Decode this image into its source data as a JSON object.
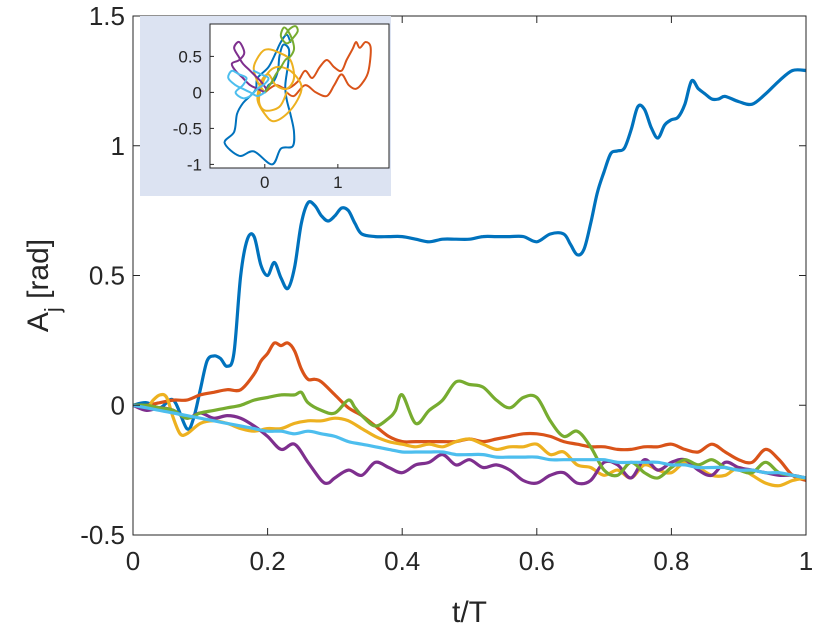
{
  "chart_data": [
    {
      "type": "line",
      "xlabel": "t/T",
      "ylabel": "A",
      "ylabel_subscript": "j",
      "ylabel_unit": " [rad]",
      "xlim": [
        0,
        1
      ],
      "ylim": [
        -0.5,
        1.5
      ],
      "xticks": [
        0,
        0.2,
        0.4,
        0.6,
        0.8,
        1
      ],
      "xtick_labels": [
        "0",
        "0.2",
        "0.4",
        "0.6",
        "0.8",
        "1"
      ],
      "yticks": [
        -0.5,
        0,
        0.5,
        1,
        1.5
      ],
      "ytick_labels": [
        "-0.5",
        "0",
        "0.5",
        "1",
        "1.5"
      ],
      "grid": false,
      "series": [
        {
          "color": "#0072BD",
          "x": [
            0,
            0.02,
            0.04,
            0.06,
            0.08,
            0.09,
            0.1,
            0.11,
            0.12,
            0.13,
            0.14,
            0.15,
            0.16,
            0.17,
            0.18,
            0.19,
            0.2,
            0.21,
            0.22,
            0.23,
            0.24,
            0.25,
            0.26,
            0.27,
            0.28,
            0.29,
            0.3,
            0.31,
            0.32,
            0.33,
            0.34,
            0.36,
            0.38,
            0.4,
            0.42,
            0.44,
            0.46,
            0.48,
            0.5,
            0.52,
            0.54,
            0.56,
            0.58,
            0.6,
            0.62,
            0.64,
            0.65,
            0.66,
            0.67,
            0.68,
            0.69,
            0.7,
            0.71,
            0.72,
            0.73,
            0.74,
            0.75,
            0.76,
            0.77,
            0.78,
            0.79,
            0.8,
            0.81,
            0.82,
            0.83,
            0.84,
            0.85,
            0.86,
            0.87,
            0.88,
            0.9,
            0.92,
            0.94,
            0.96,
            0.98,
            1.0
          ],
          "y": [
            0,
            0.01,
            -0.01,
            0.02,
            -0.09,
            -0.05,
            0.06,
            0.17,
            0.19,
            0.18,
            0.15,
            0.2,
            0.5,
            0.64,
            0.65,
            0.54,
            0.5,
            0.55,
            0.49,
            0.45,
            0.53,
            0.7,
            0.78,
            0.77,
            0.73,
            0.71,
            0.73,
            0.76,
            0.75,
            0.7,
            0.66,
            0.65,
            0.65,
            0.65,
            0.64,
            0.63,
            0.64,
            0.64,
            0.64,
            0.65,
            0.65,
            0.65,
            0.65,
            0.63,
            0.66,
            0.66,
            0.62,
            0.58,
            0.6,
            0.7,
            0.82,
            0.9,
            0.97,
            0.98,
            0.99,
            1.06,
            1.15,
            1.14,
            1.07,
            1.03,
            1.08,
            1.1,
            1.11,
            1.16,
            1.25,
            1.22,
            1.2,
            1.18,
            1.18,
            1.19,
            1.17,
            1.16,
            1.2,
            1.25,
            1.29,
            1.29
          ]
        },
        {
          "color": "#D95319",
          "x": [
            0,
            0.02,
            0.04,
            0.06,
            0.08,
            0.1,
            0.12,
            0.14,
            0.16,
            0.18,
            0.19,
            0.2,
            0.21,
            0.22,
            0.23,
            0.24,
            0.25,
            0.26,
            0.27,
            0.28,
            0.3,
            0.32,
            0.34,
            0.36,
            0.38,
            0.4,
            0.42,
            0.44,
            0.46,
            0.48,
            0.5,
            0.52,
            0.54,
            0.56,
            0.58,
            0.6,
            0.62,
            0.64,
            0.66,
            0.68,
            0.7,
            0.72,
            0.74,
            0.76,
            0.78,
            0.8,
            0.82,
            0.84,
            0.86,
            0.88,
            0.9,
            0.92,
            0.94,
            0.96,
            0.98,
            1.0
          ],
          "y": [
            0,
            0,
            0.01,
            0.02,
            0.02,
            0.04,
            0.05,
            0.06,
            0.06,
            0.12,
            0.17,
            0.2,
            0.24,
            0.23,
            0.24,
            0.21,
            0.14,
            0.1,
            0.1,
            0.09,
            0.04,
            -0.01,
            -0.04,
            -0.08,
            -0.12,
            -0.14,
            -0.14,
            -0.14,
            -0.14,
            -0.14,
            -0.13,
            -0.14,
            -0.13,
            -0.12,
            -0.11,
            -0.11,
            -0.12,
            -0.14,
            -0.15,
            -0.16,
            -0.16,
            -0.17,
            -0.17,
            -0.16,
            -0.16,
            -0.15,
            -0.17,
            -0.18,
            -0.15,
            -0.18,
            -0.21,
            -0.22,
            -0.17,
            -0.21,
            -0.27,
            -0.29
          ]
        },
        {
          "color": "#EDB120",
          "x": [
            0,
            0.02,
            0.03,
            0.04,
            0.05,
            0.06,
            0.07,
            0.08,
            0.1,
            0.12,
            0.14,
            0.16,
            0.18,
            0.2,
            0.22,
            0.24,
            0.26,
            0.28,
            0.3,
            0.32,
            0.34,
            0.36,
            0.38,
            0.4,
            0.42,
            0.44,
            0.46,
            0.48,
            0.5,
            0.52,
            0.54,
            0.56,
            0.58,
            0.6,
            0.62,
            0.64,
            0.66,
            0.68,
            0.7,
            0.72,
            0.74,
            0.76,
            0.78,
            0.8,
            0.82,
            0.84,
            0.86,
            0.88,
            0.9,
            0.92,
            0.94,
            0.96,
            0.98,
            1.0
          ],
          "y": [
            0,
            -0.01,
            0.02,
            0.04,
            0.03,
            -0.05,
            -0.11,
            -0.11,
            -0.07,
            -0.06,
            -0.07,
            -0.09,
            -0.1,
            -0.09,
            -0.09,
            -0.07,
            -0.06,
            -0.06,
            -0.05,
            -0.06,
            -0.09,
            -0.12,
            -0.14,
            -0.15,
            -0.16,
            -0.15,
            -0.16,
            -0.14,
            -0.13,
            -0.15,
            -0.17,
            -0.16,
            -0.16,
            -0.15,
            -0.19,
            -0.18,
            -0.23,
            -0.24,
            -0.27,
            -0.25,
            -0.28,
            -0.23,
            -0.25,
            -0.26,
            -0.22,
            -0.24,
            -0.27,
            -0.27,
            -0.24,
            -0.27,
            -0.3,
            -0.31,
            -0.29,
            -0.28
          ]
        },
        {
          "color": "#7E2F8E",
          "x": [
            0,
            0.02,
            0.04,
            0.06,
            0.08,
            0.1,
            0.12,
            0.14,
            0.16,
            0.18,
            0.2,
            0.22,
            0.24,
            0.26,
            0.28,
            0.29,
            0.3,
            0.32,
            0.34,
            0.36,
            0.38,
            0.4,
            0.42,
            0.44,
            0.46,
            0.48,
            0.5,
            0.52,
            0.54,
            0.56,
            0.58,
            0.6,
            0.62,
            0.64,
            0.66,
            0.68,
            0.7,
            0.72,
            0.74,
            0.76,
            0.78,
            0.8,
            0.82,
            0.84,
            0.86,
            0.88,
            0.9,
            0.92,
            0.94,
            0.96,
            0.98,
            1.0
          ],
          "y": [
            0,
            -0.02,
            -0.01,
            -0.02,
            -0.05,
            -0.03,
            -0.05,
            -0.04,
            -0.05,
            -0.08,
            -0.12,
            -0.17,
            -0.15,
            -0.22,
            -0.29,
            -0.3,
            -0.28,
            -0.25,
            -0.27,
            -0.22,
            -0.24,
            -0.26,
            -0.23,
            -0.22,
            -0.19,
            -0.23,
            -0.21,
            -0.24,
            -0.23,
            -0.25,
            -0.29,
            -0.3,
            -0.27,
            -0.26,
            -0.3,
            -0.29,
            -0.22,
            -0.23,
            -0.28,
            -0.21,
            -0.25,
            -0.22,
            -0.21,
            -0.25,
            -0.27,
            -0.22,
            -0.24,
            -0.25,
            -0.26,
            -0.27,
            -0.27,
            -0.28
          ]
        },
        {
          "color": "#77AC30",
          "x": [
            0,
            0.02,
            0.04,
            0.06,
            0.08,
            0.1,
            0.12,
            0.14,
            0.16,
            0.18,
            0.2,
            0.22,
            0.24,
            0.25,
            0.26,
            0.28,
            0.3,
            0.32,
            0.33,
            0.34,
            0.36,
            0.38,
            0.39,
            0.4,
            0.42,
            0.44,
            0.46,
            0.48,
            0.5,
            0.52,
            0.54,
            0.56,
            0.58,
            0.6,
            0.62,
            0.64,
            0.66,
            0.68,
            0.7,
            0.72,
            0.74,
            0.76,
            0.78,
            0.8,
            0.82,
            0.84,
            0.86,
            0.88,
            0.9,
            0.92,
            0.94,
            0.96,
            0.98,
            1.0
          ],
          "y": [
            0,
            0,
            -0.01,
            -0.02,
            -0.05,
            -0.03,
            -0.02,
            -0.01,
            0,
            0.02,
            0.03,
            0.04,
            0.04,
            0.05,
            0.01,
            -0.02,
            -0.03,
            0.02,
            -0.01,
            -0.04,
            -0.08,
            -0.05,
            -0.02,
            0.04,
            -0.07,
            -0.02,
            0.02,
            0.09,
            0.08,
            0.07,
            0.02,
            -0.01,
            0.03,
            0.03,
            -0.06,
            -0.12,
            -0.1,
            -0.16,
            -0.25,
            -0.27,
            -0.22,
            -0.26,
            -0.28,
            -0.24,
            -0.21,
            -0.23,
            -0.21,
            -0.24,
            -0.25,
            -0.26,
            -0.22,
            -0.26,
            -0.27,
            -0.28
          ]
        },
        {
          "color": "#4DBEEE",
          "x": [
            0,
            0.02,
            0.04,
            0.06,
            0.08,
            0.1,
            0.12,
            0.14,
            0.16,
            0.18,
            0.2,
            0.22,
            0.24,
            0.26,
            0.28,
            0.3,
            0.32,
            0.34,
            0.36,
            0.38,
            0.4,
            0.42,
            0.44,
            0.46,
            0.48,
            0.5,
            0.52,
            0.54,
            0.56,
            0.58,
            0.6,
            0.62,
            0.64,
            0.66,
            0.68,
            0.7,
            0.72,
            0.74,
            0.76,
            0.78,
            0.8,
            0.82,
            0.84,
            0.86,
            0.88,
            0.9,
            0.92,
            0.94,
            0.96,
            0.98,
            1.0
          ],
          "y": [
            0,
            -0.01,
            -0.02,
            -0.03,
            -0.04,
            -0.05,
            -0.06,
            -0.07,
            -0.08,
            -0.09,
            -0.1,
            -0.1,
            -0.11,
            -0.1,
            -0.11,
            -0.12,
            -0.14,
            -0.15,
            -0.16,
            -0.17,
            -0.18,
            -0.18,
            -0.18,
            -0.18,
            -0.19,
            -0.19,
            -0.19,
            -0.2,
            -0.2,
            -0.2,
            -0.2,
            -0.21,
            -0.21,
            -0.21,
            -0.21,
            -0.21,
            -0.22,
            -0.22,
            -0.22,
            -0.22,
            -0.23,
            -0.23,
            -0.24,
            -0.24,
            -0.24,
            -0.25,
            -0.25,
            -0.26,
            -0.26,
            -0.27,
            -0.28
          ]
        }
      ]
    },
    {
      "type": "line",
      "inset": true,
      "background": "#DCE3F2",
      "xlim": [
        -0.75,
        1.7
      ],
      "ylim": [
        -1.05,
        0.95
      ],
      "xticks": [
        0,
        1
      ],
      "xtick_labels": [
        "0",
        "1"
      ],
      "yticks": [
        -1,
        -0.5,
        0,
        0.5
      ],
      "ytick_labels": [
        "-1",
        "-0.5",
        "0",
        "0.5"
      ],
      "grid": false,
      "series": [
        {
          "color": "#0072BD",
          "x": [
            0,
            0.05,
            0.12,
            0.18,
            0.2,
            0.25,
            0.33,
            0.32,
            0.28,
            0.3,
            0.35,
            0.4,
            0.38,
            0.22,
            0.1,
            -0.15,
            -0.35,
            -0.55,
            -0.42,
            -0.38,
            -0.3,
            -0.2,
            -0.12,
            -0.1,
            0.05,
            0.15,
            0.22,
            0.3,
            0.35
          ],
          "y": [
            0,
            0.1,
            0.15,
            0.3,
            0.5,
            0.66,
            0.6,
            0.4,
            0.1,
            -0.1,
            -0.3,
            -0.55,
            -0.75,
            -0.78,
            -1.0,
            -0.82,
            -0.88,
            -0.7,
            -0.55,
            -0.3,
            -0.15,
            -0.05,
            0.05,
            0.2,
            0.35,
            0.55,
            0.7,
            0.8,
            0.7
          ]
        },
        {
          "color": "#D95319",
          "x": [
            0,
            0.15,
            0.3,
            0.45,
            0.55,
            0.65,
            0.75,
            0.85,
            0.95,
            1.05,
            1.12,
            1.2,
            1.25,
            1.3,
            1.38,
            1.45,
            1.42,
            1.35,
            1.25,
            1.15,
            1.05,
            0.95,
            0.85,
            0.7,
            0.55,
            0.4,
            0.3
          ],
          "y": [
            0,
            0.1,
            0.05,
            0.15,
            0.3,
            0.2,
            0.35,
            0.45,
            0.35,
            0.3,
            0.45,
            0.6,
            0.7,
            0.62,
            0.7,
            0.62,
            0.3,
            0.15,
            0.05,
            0.1,
            0.25,
            0.1,
            -0.05,
            0.0,
            0.1,
            -0.05,
            0.0
          ]
        },
        {
          "color": "#EDB120",
          "x": [
            0,
            -0.1,
            -0.15,
            -0.05,
            0.05,
            0.2,
            0.35,
            0.4,
            0.3,
            0.15,
            0.05,
            -0.05,
            -0.1,
            0.0,
            0.12,
            0.3,
            0.45,
            0.5,
            0.35,
            0.15,
            0.0,
            -0.08,
            0.0,
            0.2,
            0.3
          ],
          "y": [
            0,
            0.15,
            0.35,
            0.55,
            0.6,
            0.55,
            0.45,
            0.2,
            0.05,
            0.1,
            0.25,
            0.15,
            -0.1,
            -0.3,
            -0.4,
            -0.3,
            -0.1,
            0.1,
            0.3,
            0.35,
            0.2,
            -0.1,
            -0.25,
            -0.2,
            0.0
          ]
        },
        {
          "color": "#7E2F8E",
          "x": [
            0,
            -0.1,
            -0.2,
            -0.3,
            -0.4,
            -0.45,
            -0.35,
            -0.28,
            -0.35,
            -0.42,
            -0.36,
            -0.3,
            -0.2,
            -0.12,
            -0.05,
            0.02
          ],
          "y": [
            0,
            0.05,
            0.1,
            0.2,
            0.3,
            0.4,
            0.45,
            0.55,
            0.7,
            0.62,
            0.5,
            0.4,
            0.3,
            0.22,
            0.15,
            0.05
          ]
        },
        {
          "color": "#77AC30",
          "x": [
            0,
            0.08,
            0.15,
            0.22,
            0.28,
            0.35,
            0.4,
            0.38,
            0.32,
            0.26,
            0.22,
            0.3,
            0.38,
            0.45,
            0.42,
            0.34,
            0.28
          ],
          "y": [
            0,
            0.12,
            0.25,
            0.35,
            0.45,
            0.5,
            0.6,
            0.72,
            0.85,
            0.9,
            0.78,
            0.68,
            0.75,
            0.85,
            0.92,
            0.88,
            0.8
          ]
        },
        {
          "color": "#4DBEEE",
          "x": [
            0,
            -0.1,
            -0.2,
            -0.3,
            -0.4,
            -0.5,
            -0.45,
            -0.35,
            -0.25,
            -0.3,
            -0.4,
            -0.3,
            -0.2,
            -0.1,
            0.0,
            0.05,
            -0.05,
            -0.15
          ],
          "y": [
            0,
            -0.05,
            0.0,
            0.05,
            0.1,
            0.2,
            0.3,
            0.25,
            0.2,
            0.1,
            0.0,
            -0.08,
            -0.05,
            0.05,
            0.12,
            0.2,
            0.25,
            0.3
          ]
        }
      ]
    }
  ]
}
